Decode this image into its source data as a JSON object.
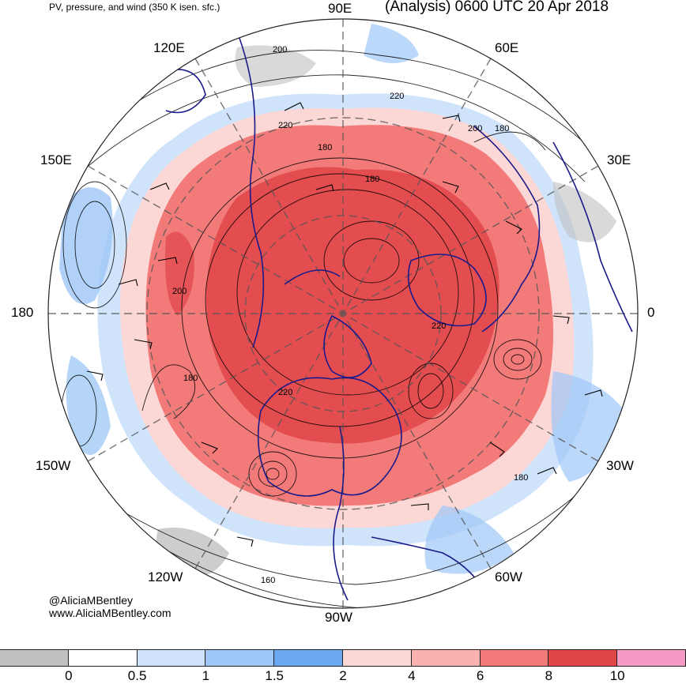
{
  "header": {
    "subtitle": "PV, pressure, and wind (350 K isen. sfc.)",
    "title": "(Analysis) 0600 UTC 20 Apr 2018"
  },
  "longitude_labels": {
    "lon_90e": "90E",
    "lon_60e": "60E",
    "lon_30e": "30E",
    "lon_0": "0",
    "lon_30w": "30W",
    "lon_60w": "60W",
    "lon_90w": "90W",
    "lon_120w": "120W",
    "lon_150w": "150W",
    "lon_180": "180",
    "lon_150e": "150E",
    "lon_120e": "120E"
  },
  "contour_labels": [
    "200",
    "220",
    "220",
    "180",
    "200",
    "180",
    "180",
    "200",
    "220",
    "180",
    "220",
    "180",
    "160"
  ],
  "credit": {
    "handle": "@AliciaMBentley",
    "website": "www.AliciaMBentley.com"
  },
  "colorbar": {
    "colors": [
      "#c0c0c0",
      "#ffffff",
      "#cfe3fb",
      "#9ec6f7",
      "#6aa9f1",
      "#fbd7d5",
      "#f8b3b0",
      "#f27b79",
      "#e04548",
      "#f49ac4"
    ],
    "ticks": [
      "0",
      "0.5",
      "1",
      "1.5",
      "2",
      "4",
      "6",
      "8",
      "10"
    ]
  }
}
